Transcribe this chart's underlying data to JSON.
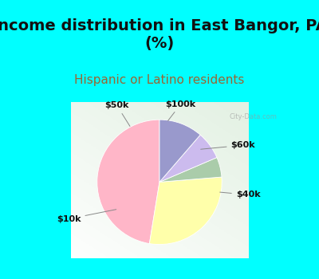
{
  "title": "Income distribution in East Bangor, PA\n(%)",
  "subtitle": "Hispanic or Latino residents",
  "slices": [
    {
      "label": "$10k",
      "value": 46,
      "color": "#FFB6C8"
    },
    {
      "label": "$40k",
      "value": 28,
      "color": "#FFFFAA"
    },
    {
      "label": "$60k",
      "value": 5,
      "color": "#AACCAA"
    },
    {
      "label": "$100k",
      "value": 7,
      "color": "#CCBBEE"
    },
    {
      "label": "$50k",
      "value": 11,
      "color": "#9999CC"
    }
  ],
  "bg_cyan": "#00FFFF",
  "title_fontsize": 14,
  "subtitle_fontsize": 11,
  "subtitle_color": "#996633",
  "watermark": "City-Data.com",
  "startangle": 90,
  "annotations": [
    {
      "label": "$10k",
      "text": [
        -1.28,
        -0.52
      ],
      "arrow": [
        -0.58,
        -0.38
      ]
    },
    {
      "label": "$40k",
      "text": [
        1.25,
        -0.18
      ],
      "arrow": [
        0.82,
        -0.14
      ]
    },
    {
      "label": "$60k",
      "text": [
        1.18,
        0.52
      ],
      "arrow": [
        0.55,
        0.46
      ]
    },
    {
      "label": "$100k",
      "text": [
        0.3,
        1.1
      ],
      "arrow": [
        0.1,
        0.84
      ]
    },
    {
      "label": "$50k",
      "text": [
        -0.6,
        1.08
      ],
      "arrow": [
        -0.4,
        0.76
      ]
    }
  ]
}
